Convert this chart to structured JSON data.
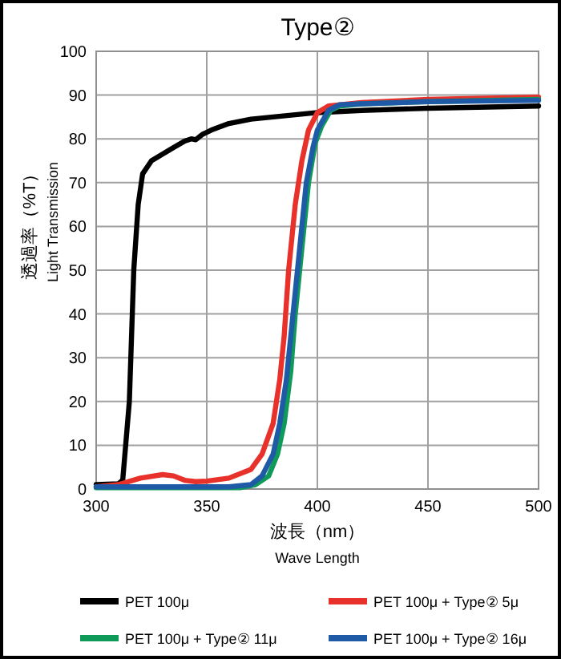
{
  "chart_data": {
    "type": "line",
    "title": "Type②",
    "xlabel": "波長（nm）",
    "ylabel": "透過率（%T）",
    "annotations": [
      "Wave Length",
      "Light Transmission"
    ],
    "xlim": [
      300,
      500
    ],
    "xticks": [
      300,
      350,
      400,
      450,
      500
    ],
    "ylim": [
      0,
      100
    ],
    "yticks": [
      0,
      10,
      20,
      30,
      40,
      50,
      60,
      70,
      80,
      90,
      100
    ],
    "grid": true,
    "legend": "bottom",
    "line_style": "solid",
    "series": [
      {
        "name": "PET 100μ",
        "color": "#000000",
        "x": [
          300,
          310,
          312,
          315,
          317,
          319,
          321,
          325,
          330,
          335,
          340,
          343,
          345,
          348,
          352,
          360,
          370,
          380,
          400,
          420,
          450,
          500
        ],
        "values": [
          1,
          1.2,
          2,
          20,
          50,
          65,
          72,
          75,
          76.5,
          78,
          79.5,
          80,
          79.8,
          81,
          82,
          83.5,
          84.5,
          85,
          86,
          86.5,
          87,
          87.5
        ]
      },
      {
        "name": "PET 100μ + Type② 5μ",
        "color": "#e8312a",
        "x": [
          300,
          310,
          320,
          330,
          335,
          340,
          345,
          350,
          360,
          370,
          375,
          380,
          383,
          385,
          387,
          390,
          393,
          396,
          400,
          405,
          420,
          450,
          500
        ],
        "values": [
          0.5,
          1,
          2.5,
          3.3,
          3,
          2,
          1.7,
          1.8,
          2.5,
          4.5,
          8,
          15,
          25,
          35,
          50,
          65,
          75,
          82,
          86,
          87.5,
          88.3,
          89,
          89.5
        ]
      },
      {
        "name": "PET 100μ + Type② 11μ",
        "color": "#0f9a5a",
        "x": [
          300,
          365,
          372,
          378,
          382,
          385,
          388,
          390,
          393,
          396,
          399,
          402,
          406,
          410,
          420,
          450,
          500
        ],
        "values": [
          0.3,
          0.3,
          1,
          3,
          8,
          15,
          27,
          40,
          55,
          70,
          79,
          83,
          86.5,
          87.5,
          88,
          88.5,
          89
        ]
      },
      {
        "name": "PET 100μ + Type② 16μ",
        "color": "#1f5aa6",
        "x": [
          300,
          360,
          370,
          375,
          380,
          383,
          386,
          389,
          392,
          395,
          398,
          400,
          405,
          410,
          420,
          450,
          500
        ],
        "values": [
          0.5,
          0.5,
          1,
          3,
          8,
          15,
          25,
          40,
          55,
          70,
          78,
          82,
          86.5,
          87.8,
          88,
          88.5,
          88.8
        ]
      }
    ]
  }
}
